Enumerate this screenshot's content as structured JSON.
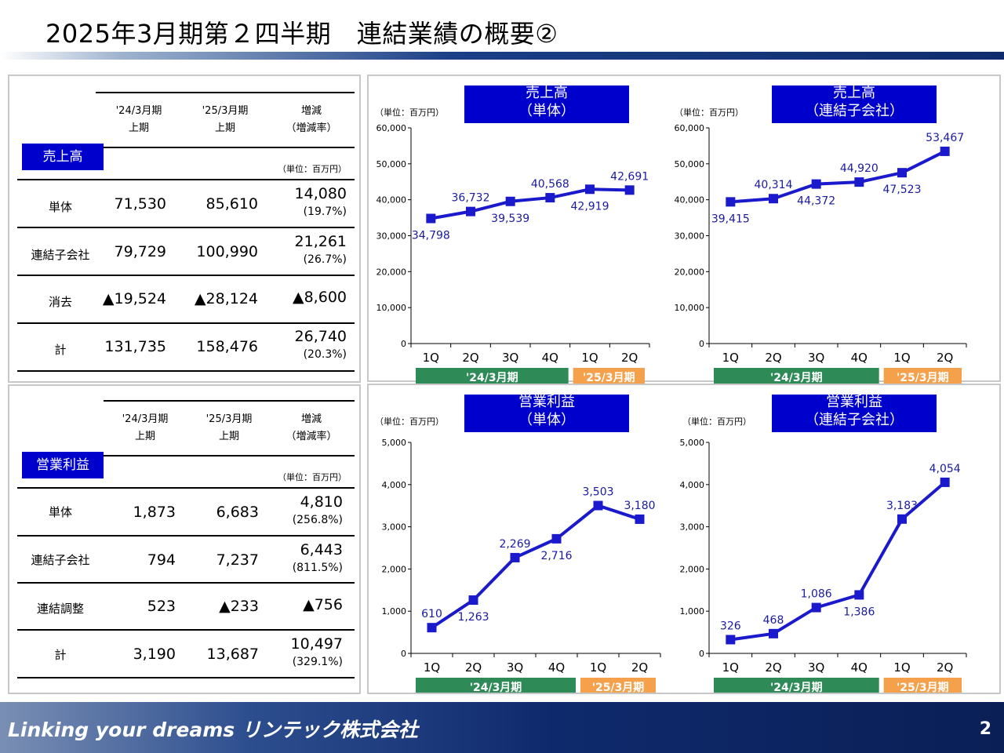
{
  "title": "2025年3月期第２四半期　連結業績の概要②",
  "footer": {
    "tagline": "Linking your dreams リンテック株式会社",
    "page": "2"
  },
  "sales_table": {
    "category": "売上高",
    "col1": [
      "'24/3月期",
      "上期"
    ],
    "col2": [
      "'25/3月期",
      "上期"
    ],
    "col3": [
      "増減",
      "（増減率）"
    ],
    "unit": "（単位：百万円）",
    "rows": [
      {
        "label": "単体",
        "prev": "71,530",
        "curr": "85,610",
        "chg": "14,080",
        "rate": "(19.7%)"
      },
      {
        "label": "連結子会社",
        "prev": "79,729",
        "curr": "100,990",
        "chg": "21,261",
        "rate": "(26.7%)"
      },
      {
        "label": "消去",
        "prev": "▲19,524",
        "curr": "▲28,124",
        "chg": "▲8,600",
        "rate": ""
      },
      {
        "label": "計",
        "prev": "131,735",
        "curr": "158,476",
        "chg": "26,740",
        "rate": "(20.3%)"
      }
    ]
  },
  "op_table": {
    "category": "営業利益",
    "col1": [
      "'24/3月期",
      "上期"
    ],
    "col2": [
      "'25/3月期",
      "上期"
    ],
    "col3": [
      "増減",
      "（増減率）"
    ],
    "unit": "（単位：百万円）",
    "rows": [
      {
        "label": "単体",
        "prev": "1,873",
        "curr": "6,683",
        "chg": "4,810",
        "rate": "(256.8%)"
      },
      {
        "label": "連結子会社",
        "prev": "794",
        "curr": "7,237",
        "chg": "6,443",
        "rate": "(811.5%)"
      },
      {
        "label": "連結調整",
        "prev": "523",
        "curr": "▲233",
        "chg": "▲756",
        "rate": ""
      },
      {
        "label": "計",
        "prev": "3,190",
        "curr": "13,687",
        "chg": "10,497",
        "rate": "(329.1%)"
      }
    ]
  },
  "chart_data": [
    {
      "type": "line",
      "title": [
        "売上高",
        "（単体）"
      ],
      "unit": "（単位：百万円）",
      "categories": [
        "1Q",
        "2Q",
        "3Q",
        "4Q",
        "1Q",
        "2Q"
      ],
      "values": [
        34798,
        36732,
        39539,
        40568,
        42919,
        42691
      ],
      "labels": [
        "34,798",
        "36,732",
        "39,539",
        "40,568",
        "42,919",
        "42,691"
      ],
      "label_pos": [
        "below",
        "above",
        "below",
        "above",
        "below",
        "above"
      ],
      "ylim": [
        0,
        60000
      ],
      "yticks": [
        "0",
        "10,000",
        "20,000",
        "30,000",
        "40,000",
        "50,000",
        "60,000"
      ],
      "periods": [
        {
          "label": "'24/3月期",
          "color": "#2e8b57"
        },
        {
          "label": "'25/3月期",
          "color": "#f5a04a"
        }
      ],
      "line_color": "#1a1acc"
    },
    {
      "type": "line",
      "title": [
        "売上高",
        "（連結子会社）"
      ],
      "unit": "（単位：百万円）",
      "categories": [
        "1Q",
        "2Q",
        "3Q",
        "4Q",
        "1Q",
        "2Q"
      ],
      "values": [
        39415,
        40314,
        44372,
        44920,
        47523,
        53467
      ],
      "labels": [
        "39,415",
        "40,314",
        "44,372",
        "44,920",
        "47,523",
        "53,467"
      ],
      "label_pos": [
        "below",
        "above",
        "below",
        "above",
        "below",
        "above"
      ],
      "ylim": [
        0,
        60000
      ],
      "yticks": [
        "0",
        "10,000",
        "20,000",
        "30,000",
        "40,000",
        "50,000",
        "60,000"
      ],
      "periods": [
        {
          "label": "'24/3月期",
          "color": "#2e8b57"
        },
        {
          "label": "'25/3月期",
          "color": "#f5a04a"
        }
      ],
      "line_color": "#1a1acc"
    },
    {
      "type": "line",
      "title": [
        "営業利益",
        "（単体）"
      ],
      "unit": "（単位：百万円）",
      "categories": [
        "1Q",
        "2Q",
        "3Q",
        "4Q",
        "1Q",
        "2Q"
      ],
      "values": [
        610,
        1263,
        2269,
        2716,
        3503,
        3180
      ],
      "labels": [
        "610",
        "1,263",
        "2,269",
        "2,716",
        "3,503",
        "3,180"
      ],
      "label_pos": [
        "above",
        "below",
        "above",
        "below",
        "above",
        "above"
      ],
      "ylim": [
        0,
        5000
      ],
      "yticks": [
        "0",
        "1,000",
        "2,000",
        "3,000",
        "4,000",
        "5,000"
      ],
      "periods": [
        {
          "label": "'24/3月期",
          "color": "#2e8b57"
        },
        {
          "label": "'25/3月期",
          "color": "#f5a04a"
        }
      ],
      "line_color": "#1a1acc"
    },
    {
      "type": "line",
      "title": [
        "営業利益",
        "（連結子会社）"
      ],
      "unit": "（単位：百万円）",
      "categories": [
        "1Q",
        "2Q",
        "3Q",
        "4Q",
        "1Q",
        "2Q"
      ],
      "values": [
        326,
        468,
        1086,
        1386,
        3183,
        4054
      ],
      "labels": [
        "326",
        "468",
        "1,086",
        "1,386",
        "3,183",
        "4,054"
      ],
      "label_pos": [
        "above",
        "above",
        "above",
        "below",
        "above",
        "above"
      ],
      "ylim": [
        0,
        5000
      ],
      "yticks": [
        "0",
        "1,000",
        "2,000",
        "3,000",
        "4,000",
        "5,000"
      ],
      "periods": [
        {
          "label": "'24/3月期",
          "color": "#2e8b57"
        },
        {
          "label": "'25/3月期",
          "color": "#f5a04a"
        }
      ],
      "line_color": "#1a1acc"
    }
  ]
}
